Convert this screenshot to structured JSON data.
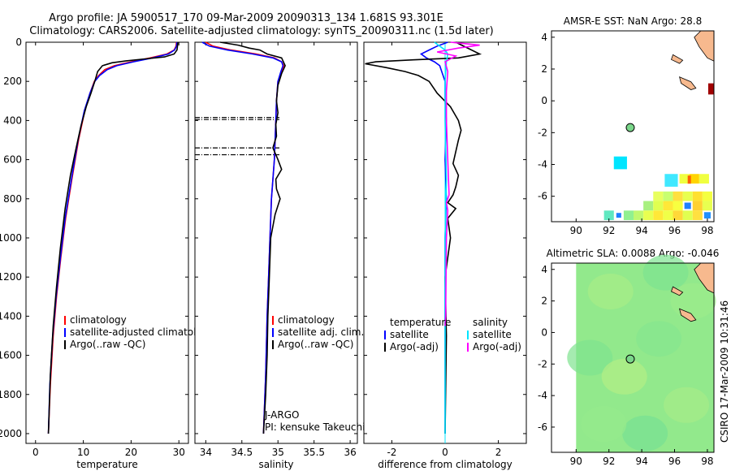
{
  "header": {
    "line1": "Argo profile: JA 5900517_170 09-Mar-2009 20090313_134 1.681S 93.301E",
    "line2": "Climatology: CARS2006. Satellite-adjusted climatology: synTS_20090311.nc (1.5d later)"
  },
  "side_label": "CSIRO 17-Mar-2009 10:31:46",
  "colors": {
    "climatology": "#ff0000",
    "satellite": "#0000ff",
    "argo": "#000000",
    "satellite_salinity": "#00e5ff",
    "argo_adj_salinity": "#ff00ff",
    "land": "#f7b98e",
    "sla_field": "#8ee88a",
    "marker": "#7ad68a"
  },
  "chart_data": [
    {
      "id": "temperature",
      "type": "line",
      "xlabel": "temperature",
      "ylabel": "",
      "xlim": [
        -2,
        32
      ],
      "ylim": [
        2050,
        0
      ],
      "xticks": [
        0,
        10,
        20,
        30
      ],
      "yticks": [
        0,
        200,
        400,
        600,
        800,
        1000,
        1200,
        1400,
        1600,
        1800,
        2000
      ],
      "legend": [
        "climatology",
        "satellite-adjusted climatology",
        "Argo(..raw -QC)"
      ],
      "series": [
        {
          "name": "climatology",
          "color": "#ff0000",
          "x": [
            29.5,
            29.4,
            29.0,
            27.5,
            24.0,
            20.0,
            16.5,
            14.5,
            13.2,
            12.3,
            11.4,
            10.3,
            9.0,
            7.6,
            6.3,
            5.3,
            4.4,
            3.7,
            3.1,
            2.7
          ],
          "y": [
            0,
            20,
            40,
            60,
            80,
            100,
            120,
            140,
            170,
            200,
            260,
            350,
            500,
            700,
            900,
            1100,
            1300,
            1500,
            1750,
            2000
          ]
        },
        {
          "name": "satellite-adjusted climatology",
          "color": "#0000ff",
          "x": [
            29.6,
            29.5,
            29.1,
            27.8,
            24.5,
            20.5,
            17.0,
            15.0,
            13.4,
            12.4,
            11.4,
            10.2,
            8.9,
            7.5,
            6.2,
            5.2,
            4.3,
            3.6,
            3.0,
            2.7
          ],
          "y": [
            0,
            20,
            40,
            60,
            80,
            100,
            120,
            140,
            170,
            200,
            260,
            350,
            500,
            700,
            900,
            1100,
            1300,
            1500,
            1750,
            2000
          ]
        },
        {
          "name": "Argo(..raw -QC)",
          "color": "#000000",
          "x": [
            29.8,
            29.7,
            29.6,
            29.0,
            27.0,
            23.0,
            19.0,
            16.0,
            14.0,
            13.0,
            12.4,
            11.6,
            10.6,
            9.5,
            8.5,
            7.3,
            6.2,
            5.2,
            4.4,
            3.7,
            3.1,
            2.7
          ],
          "y": [
            0,
            20,
            40,
            60,
            75,
            85,
            95,
            105,
            120,
            150,
            200,
            260,
            330,
            430,
            540,
            680,
            850,
            1050,
            1250,
            1450,
            1700,
            2000
          ]
        }
      ]
    },
    {
      "id": "salinity",
      "type": "line",
      "xlabel": "salinity",
      "ylabel": "",
      "xlim": [
        33.85,
        36.1
      ],
      "ylim": [
        2050,
        0
      ],
      "xticks": [
        34,
        34.5,
        35,
        35.5,
        36
      ],
      "yticks": [
        0,
        200,
        400,
        600,
        800,
        1000,
        1200,
        1400,
        1600,
        1800,
        2000
      ],
      "legend": [
        "climatology",
        "satellite adj. clim.",
        "Argo(..raw -QC)"
      ],
      "annotations": [
        "J-ARGO",
        "PI: kensuke Takeuchi"
      ],
      "dashed_levels": [
        385,
        395,
        540,
        575
      ],
      "series": [
        {
          "name": "climatology",
          "color": "#ff0000",
          "x": [
            34.0,
            34.1,
            34.35,
            34.7,
            34.95,
            35.05,
            35.08,
            35.05,
            35.0,
            34.98,
            34.97,
            34.96,
            34.95,
            34.93,
            34.91,
            34.89,
            34.87,
            34.85,
            34.83,
            34.8
          ],
          "y": [
            0,
            20,
            40,
            60,
            80,
            100,
            120,
            150,
            200,
            300,
            400,
            500,
            600,
            700,
            800,
            1000,
            1200,
            1400,
            1700,
            2000
          ]
        },
        {
          "name": "satellite adj. clim.",
          "color": "#0000ff",
          "x": [
            33.95,
            34.05,
            34.3,
            34.65,
            34.93,
            35.05,
            35.07,
            35.04,
            35.0,
            34.98,
            34.97,
            34.96,
            34.95,
            34.93,
            34.91,
            34.89,
            34.87,
            34.85,
            34.83,
            34.8
          ],
          "y": [
            0,
            20,
            40,
            60,
            80,
            100,
            120,
            150,
            200,
            300,
            400,
            500,
            600,
            700,
            800,
            1000,
            1200,
            1400,
            1700,
            2000
          ]
        },
        {
          "name": "Argo(..raw -QC)",
          "color": "#000000",
          "x": [
            34.2,
            34.45,
            34.6,
            34.75,
            34.85,
            35.05,
            35.1,
            35.05,
            35.0,
            34.98,
            35.0,
            34.97,
            34.98,
            34.93,
            35.0,
            35.05,
            34.97,
            34.98,
            35.03,
            34.96,
            34.9,
            34.88,
            34.86,
            34.85,
            34.83,
            34.8
          ],
          "y": [
            0,
            15,
            30,
            40,
            60,
            80,
            120,
            160,
            220,
            300,
            360,
            420,
            480,
            540,
            600,
            650,
            700,
            750,
            800,
            880,
            1000,
            1200,
            1400,
            1600,
            1800,
            2000
          ]
        }
      ]
    },
    {
      "id": "difference",
      "type": "line",
      "xlabel": "difference from climatology",
      "ylabel": "",
      "xlim": [
        -3.05,
        3.05
      ],
      "ylim": [
        2050,
        0
      ],
      "xticks": [
        -2,
        0,
        2
      ],
      "yticks": [
        0,
        200,
        400,
        600,
        800,
        1000,
        1200,
        1400,
        1600,
        1800,
        2000
      ],
      "legend": [
        {
          "group": "temperature",
          "items": [
            "satellite",
            "Argo(-adj)"
          ]
        },
        {
          "group": "salinity",
          "items": [
            "satellite",
            "Argo(-adj)"
          ]
        }
      ],
      "series": [
        {
          "name": "temperature satellite",
          "color": "#0000ff",
          "x": [
            0.1,
            -0.3,
            -0.6,
            -0.9,
            -0.7,
            -0.4,
            -0.2,
            -0.1,
            0.0,
            0.0,
            0.05,
            0.0,
            0.05,
            0.0,
            0.0,
            0.0,
            0.0
          ],
          "y": [
            0,
            20,
            40,
            60,
            80,
            100,
            120,
            160,
            200,
            300,
            400,
            600,
            800,
            1000,
            1400,
            1700,
            2000
          ]
        },
        {
          "name": "temperature Argo(-adj)",
          "color": "#000000",
          "x": [
            0.4,
            1.3,
            0.5,
            -1.2,
            -2.6,
            -3.0,
            -2.2,
            -1.5,
            -1.0,
            -0.6,
            -0.3,
            0.2,
            0.5,
            0.6,
            0.5,
            0.4,
            0.3,
            0.5,
            0.4,
            0.3,
            0.1,
            0.4,
            0.1,
            0.2,
            0.0,
            0.05,
            0.0
          ],
          "y": [
            0,
            60,
            80,
            90,
            100,
            110,
            130,
            150,
            170,
            200,
            260,
            330,
            400,
            450,
            500,
            560,
            620,
            680,
            740,
            780,
            820,
            850,
            900,
            1000,
            1200,
            1500,
            2000
          ]
        },
        {
          "name": "salinity satellite",
          "color": "#00e5ff",
          "x": [
            -0.4,
            -0.2,
            0.0,
            0.1,
            0.05,
            0.0,
            0.0,
            0.05,
            0.0,
            0.0,
            0.0,
            0.0,
            0.0
          ],
          "y": [
            0,
            20,
            40,
            60,
            100,
            200,
            400,
            700,
            1000,
            1300,
            1600,
            1800,
            2000
          ]
        },
        {
          "name": "salinity Argo(-adj)",
          "color": "#ff00ff",
          "x": [
            0.2,
            1.3,
            0.5,
            -0.3,
            0.4,
            0.0,
            0.1,
            0.05,
            0.05,
            0.1,
            0.15,
            0.05,
            0.1,
            0.05,
            0.02,
            0.0
          ],
          "y": [
            0,
            15,
            30,
            50,
            70,
            100,
            150,
            250,
            400,
            600,
            780,
            820,
            860,
            1000,
            1400,
            1450
          ]
        }
      ]
    },
    {
      "id": "sst_map",
      "type": "heatmap",
      "title": "AMSR-E SST: NaN Argo: 28.8",
      "xlim": [
        88.5,
        98.4
      ],
      "ylim": [
        -7.6,
        4.4
      ],
      "xticks": [
        90,
        92,
        94,
        96,
        98
      ],
      "yticks": [
        -6,
        -4,
        -2,
        0,
        2,
        4
      ],
      "argo_position": {
        "lon": 93.301,
        "lat": -1.681
      }
    },
    {
      "id": "sla_map",
      "type": "heatmap",
      "title": "Altimetric SLA: 0.0088 Argo: -0.046",
      "xlim": [
        88.5,
        98.4
      ],
      "ylim": [
        -7.6,
        4.4
      ],
      "xticks": [
        90,
        92,
        94,
        96,
        98
      ],
      "yticks": [
        -6,
        -4,
        -2,
        0,
        2,
        4
      ],
      "argo_position": {
        "lon": 93.301,
        "lat": -1.681
      }
    }
  ]
}
